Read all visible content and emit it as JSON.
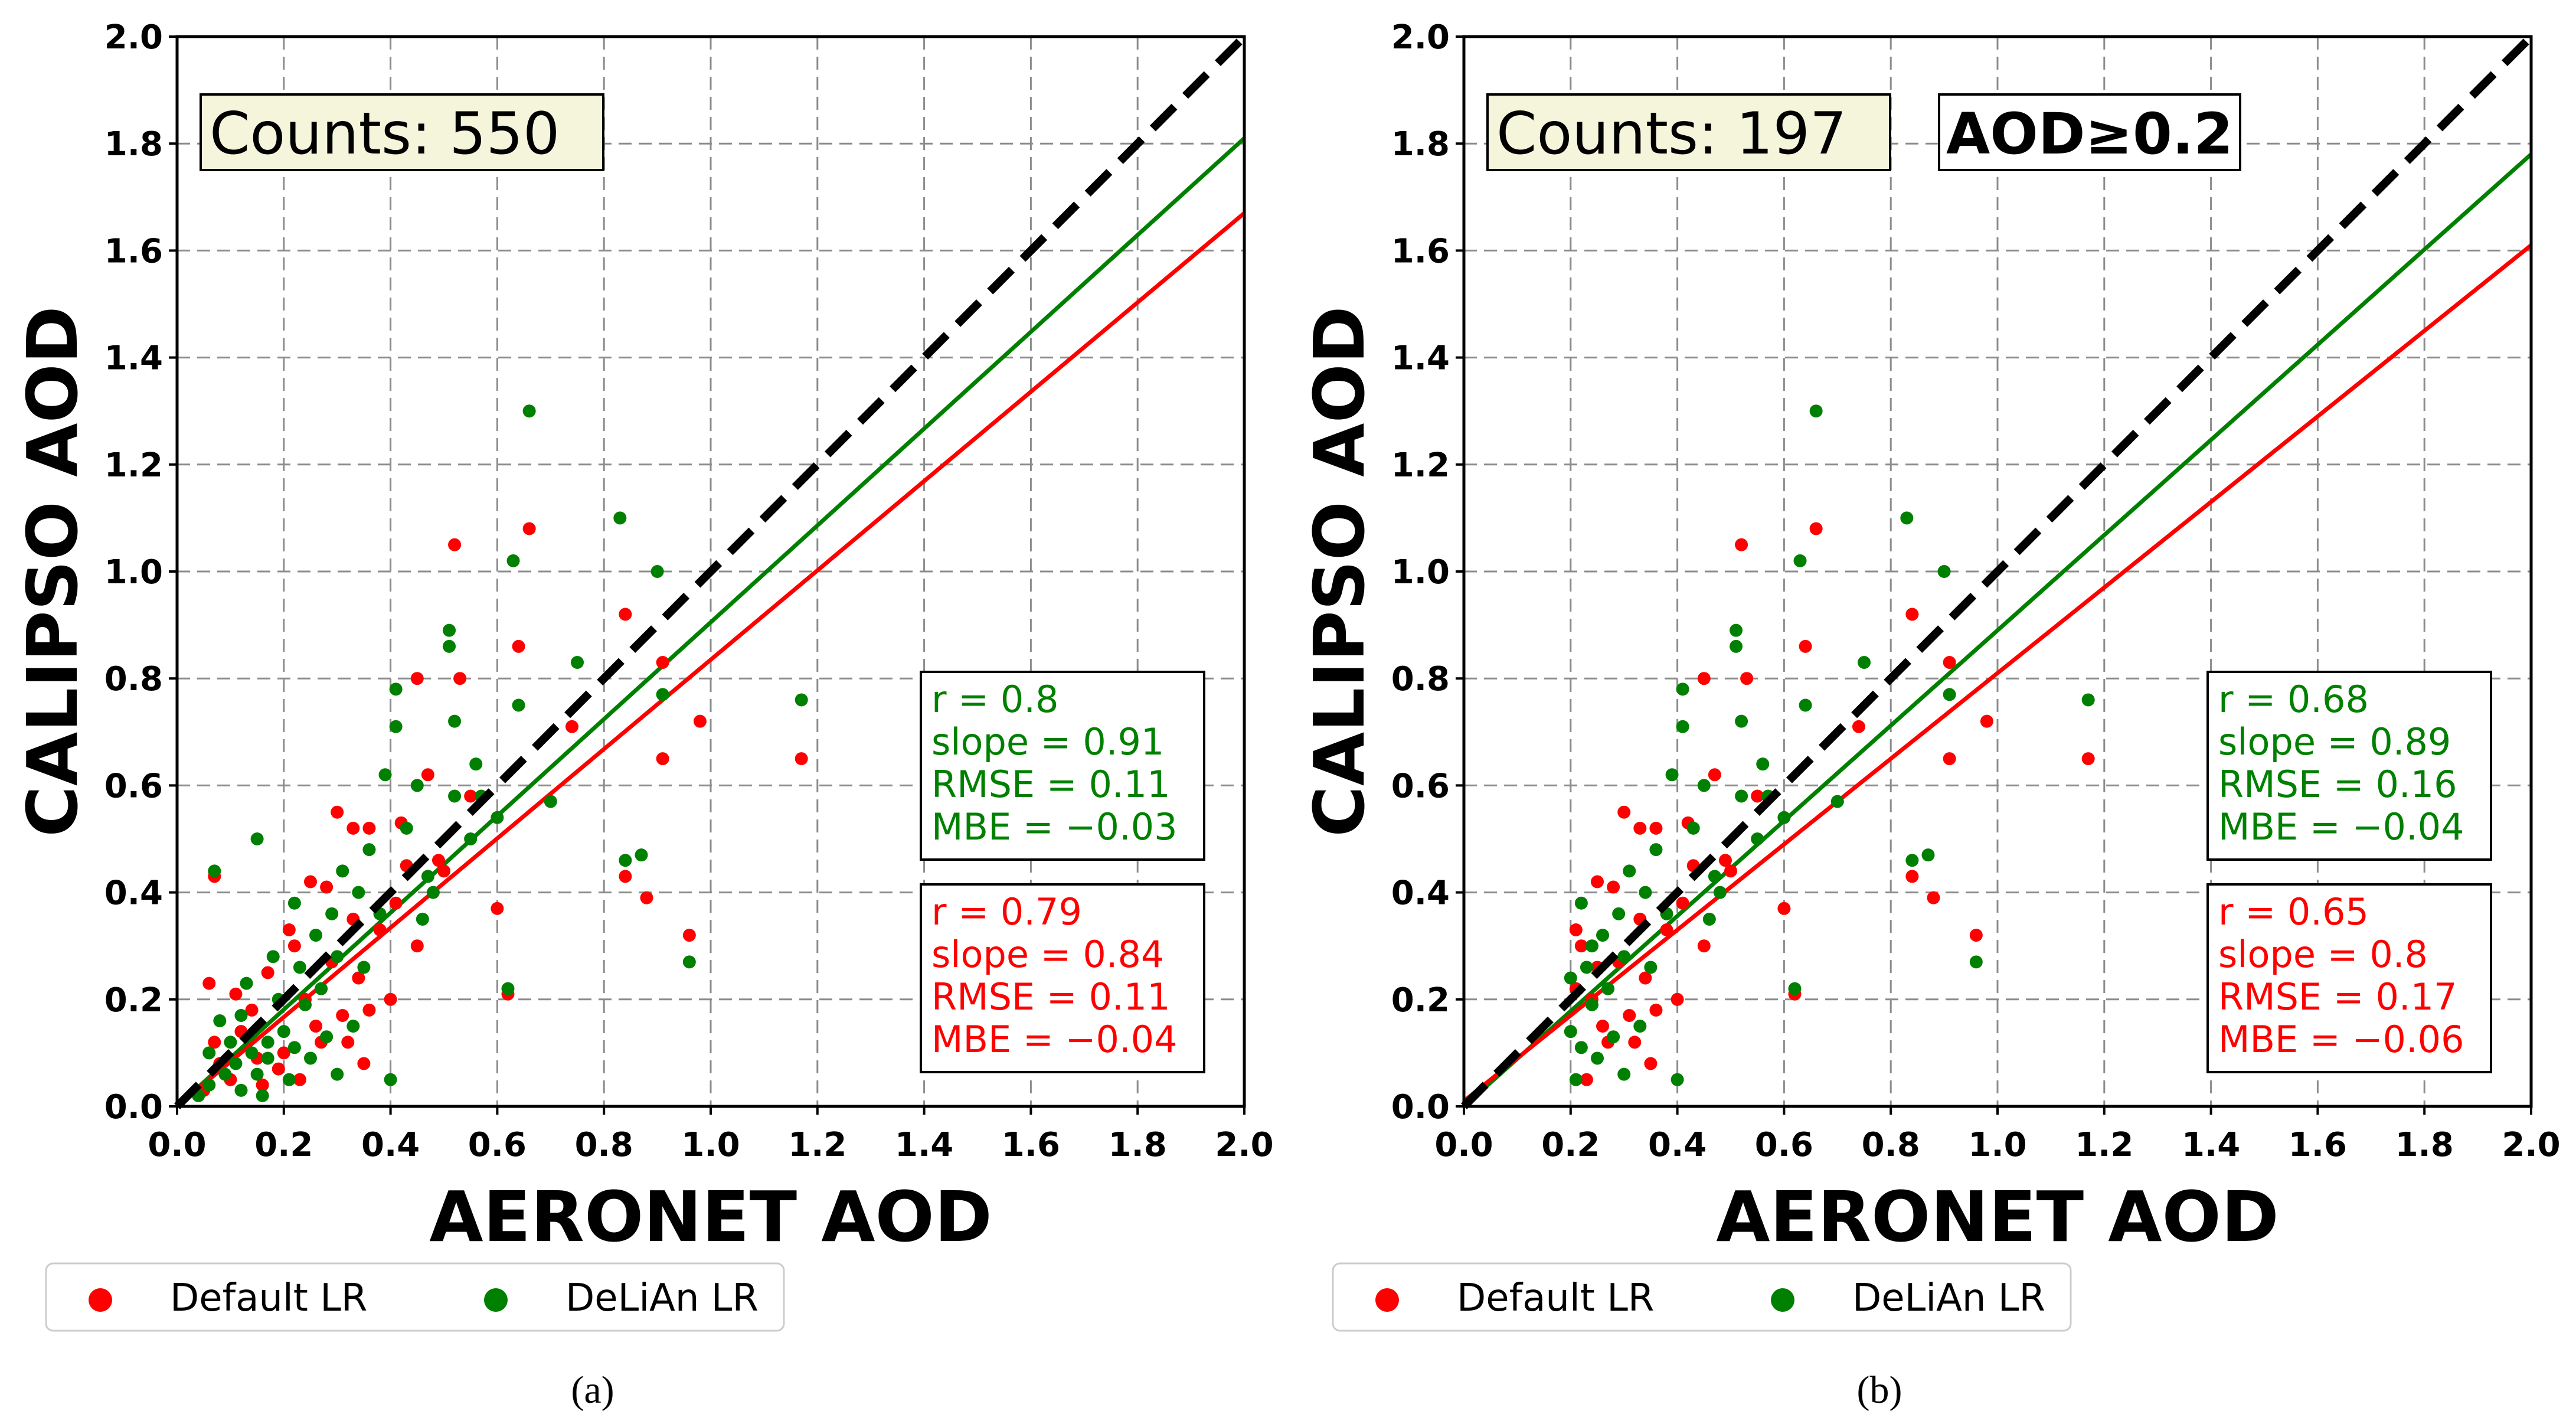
{
  "chart_data": [
    {
      "type": "scatter",
      "caption": "(a)",
      "xlabel": "AERONET AOD",
      "ylabel": "CALIPSO AOD",
      "xlim": [
        0,
        2.0
      ],
      "ylim": [
        0,
        2.0
      ],
      "xticks": [
        "0.0",
        "0.2",
        "0.4",
        "0.6",
        "0.8",
        "1.0",
        "1.2",
        "1.4",
        "1.6",
        "1.8",
        "2.0"
      ],
      "yticks": [
        "0.0",
        "0.2",
        "0.4",
        "0.6",
        "0.8",
        "1.0",
        "1.2",
        "1.4",
        "1.6",
        "1.8",
        "2.0"
      ],
      "grid": true,
      "counts_label": "Counts: 550",
      "filter_label": "",
      "one_to_one": {
        "x": [
          0,
          2.0
        ],
        "y": [
          0,
          2.0
        ],
        "color": "#000000"
      },
      "fit_lines": [
        {
          "series": "DeLiAn LR",
          "color": "#008000",
          "x": [
            0,
            2.0
          ],
          "y": [
            0.0,
            1.81
          ]
        },
        {
          "series": "Default LR",
          "color": "#ff0000",
          "x": [
            0,
            2.0
          ],
          "y": [
            0.0,
            1.67
          ]
        }
      ],
      "stats": [
        {
          "color": "#008000",
          "lines": [
            "r = 0.8",
            "slope = 0.91",
            "RMSE = 0.11",
            "MBE = −0.03"
          ]
        },
        {
          "color": "#ff0000",
          "lines": [
            "r = 0.79",
            "slope = 0.84",
            "RMSE = 0.11",
            "MBE = −0.04"
          ]
        }
      ],
      "series": [
        {
          "name": "Default LR",
          "color": "#ff0000",
          "points": [
            [
              0.52,
              1.05
            ],
            [
              0.66,
              1.08
            ],
            [
              0.64,
              0.86
            ],
            [
              0.53,
              0.8
            ],
            [
              0.45,
              0.8
            ],
            [
              0.84,
              0.92
            ],
            [
              0.91,
              0.83
            ],
            [
              0.98,
              0.72
            ],
            [
              1.17,
              0.65
            ],
            [
              0.91,
              0.65
            ],
            [
              0.74,
              0.71
            ],
            [
              0.55,
              0.58
            ],
            [
              0.47,
              0.62
            ],
            [
              0.42,
              0.53
            ],
            [
              0.36,
              0.52
            ],
            [
              0.33,
              0.52
            ],
            [
              0.3,
              0.55
            ],
            [
              0.43,
              0.45
            ],
            [
              0.49,
              0.46
            ],
            [
              0.84,
              0.43
            ],
            [
              0.88,
              0.39
            ],
            [
              0.6,
              0.37
            ],
            [
              0.96,
              0.32
            ],
            [
              0.62,
              0.21
            ],
            [
              0.07,
              0.43
            ],
            [
              0.25,
              0.42
            ],
            [
              0.33,
              0.35
            ],
            [
              0.45,
              0.3
            ],
            [
              0.34,
              0.24
            ],
            [
              0.4,
              0.2
            ],
            [
              0.36,
              0.18
            ],
            [
              0.29,
              0.27
            ],
            [
              0.31,
              0.17
            ],
            [
              0.27,
              0.12
            ],
            [
              0.32,
              0.12
            ],
            [
              0.2,
              0.1
            ],
            [
              0.15,
              0.09
            ],
            [
              0.1,
              0.05
            ],
            [
              0.05,
              0.03
            ],
            [
              0.06,
              0.23
            ],
            [
              0.07,
              0.12
            ],
            [
              0.12,
              0.14
            ],
            [
              0.17,
              0.25
            ],
            [
              0.22,
              0.3
            ],
            [
              0.24,
              0.2
            ],
            [
              0.19,
              0.07
            ],
            [
              0.23,
              0.05
            ],
            [
              0.35,
              0.08
            ],
            [
              0.14,
              0.18
            ],
            [
              0.08,
              0.08
            ],
            [
              0.26,
              0.15
            ],
            [
              0.38,
              0.33
            ],
            [
              0.41,
              0.38
            ],
            [
              0.5,
              0.44
            ],
            [
              0.28,
              0.41
            ],
            [
              0.16,
              0.04
            ],
            [
              0.11,
              0.21
            ],
            [
              0.21,
              0.33
            ]
          ]
        },
        {
          "name": "DeLiAn LR",
          "color": "#008000",
          "points": [
            [
              0.66,
              1.3
            ],
            [
              0.83,
              1.1
            ],
            [
              0.63,
              1.02
            ],
            [
              0.9,
              1.0
            ],
            [
              0.51,
              0.89
            ],
            [
              0.51,
              0.86
            ],
            [
              0.75,
              0.83
            ],
            [
              0.91,
              0.77
            ],
            [
              1.17,
              0.76
            ],
            [
              0.64,
              0.75
            ],
            [
              0.41,
              0.78
            ],
            [
              0.41,
              0.71
            ],
            [
              0.52,
              0.72
            ],
            [
              0.39,
              0.62
            ],
            [
              0.45,
              0.6
            ],
            [
              0.52,
              0.58
            ],
            [
              0.57,
              0.58
            ],
            [
              0.6,
              0.54
            ],
            [
              0.7,
              0.57
            ],
            [
              0.56,
              0.64
            ],
            [
              0.84,
              0.46
            ],
            [
              0.87,
              0.47
            ],
            [
              0.47,
              0.43
            ],
            [
              0.96,
              0.27
            ],
            [
              0.62,
              0.22
            ],
            [
              0.07,
              0.44
            ],
            [
              0.15,
              0.5
            ],
            [
              0.22,
              0.38
            ],
            [
              0.26,
              0.32
            ],
            [
              0.3,
              0.28
            ],
            [
              0.35,
              0.26
            ],
            [
              0.4,
              0.05
            ],
            [
              0.33,
              0.15
            ],
            [
              0.28,
              0.13
            ],
            [
              0.24,
              0.19
            ],
            [
              0.2,
              0.14
            ],
            [
              0.17,
              0.12
            ],
            [
              0.14,
              0.1
            ],
            [
              0.11,
              0.08
            ],
            [
              0.09,
              0.06
            ],
            [
              0.06,
              0.04
            ],
            [
              0.04,
              0.02
            ],
            [
              0.13,
              0.23
            ],
            [
              0.18,
              0.28
            ],
            [
              0.23,
              0.26
            ],
            [
              0.27,
              0.22
            ],
            [
              0.21,
              0.05
            ],
            [
              0.16,
              0.02
            ],
            [
              0.12,
              0.03
            ],
            [
              0.31,
              0.44
            ],
            [
              0.36,
              0.48
            ],
            [
              0.43,
              0.52
            ],
            [
              0.48,
              0.4
            ],
            [
              0.55,
              0.5
            ],
            [
              0.08,
              0.16
            ],
            [
              0.1,
              0.12
            ],
            [
              0.19,
              0.2
            ],
            [
              0.25,
              0.09
            ],
            [
              0.29,
              0.36
            ],
            [
              0.34,
              0.4
            ],
            [
              0.38,
              0.36
            ],
            [
              0.15,
              0.06
            ],
            [
              0.22,
              0.11
            ],
            [
              0.3,
              0.06
            ],
            [
              0.46,
              0.35
            ],
            [
              0.06,
              0.1
            ],
            [
              0.12,
              0.17
            ],
            [
              0.17,
              0.09
            ]
          ]
        }
      ],
      "legend": {
        "placement": "bottom-left",
        "items": [
          {
            "label": "Default LR",
            "color": "#ff0000"
          },
          {
            "label": "DeLiAn LR",
            "color": "#008000"
          }
        ]
      }
    },
    {
      "type": "scatter",
      "caption": "(b)",
      "xlabel": "AERONET AOD",
      "ylabel": "CALIPSO AOD",
      "xlim": [
        0,
        2.0
      ],
      "ylim": [
        0,
        2.0
      ],
      "xticks": [
        "0.0",
        "0.2",
        "0.4",
        "0.6",
        "0.8",
        "1.0",
        "1.2",
        "1.4",
        "1.6",
        "1.8",
        "2.0"
      ],
      "yticks": [
        "0.0",
        "0.2",
        "0.4",
        "0.6",
        "0.8",
        "1.0",
        "1.2",
        "1.4",
        "1.6",
        "1.8",
        "2.0"
      ],
      "grid": true,
      "counts_label": "Counts: 197",
      "filter_label": "AOD≥0.2",
      "one_to_one": {
        "x": [
          0,
          2.0
        ],
        "y": [
          0,
          2.0
        ],
        "color": "#000000"
      },
      "fit_lines": [
        {
          "series": "DeLiAn LR",
          "color": "#008000",
          "x": [
            0,
            2.0
          ],
          "y": [
            0.0,
            1.78
          ]
        },
        {
          "series": "Default LR",
          "color": "#ff0000",
          "x": [
            0,
            2.0
          ],
          "y": [
            0.01,
            1.61
          ]
        }
      ],
      "stats": [
        {
          "color": "#008000",
          "lines": [
            "r = 0.68",
            "slope = 0.89",
            "RMSE = 0.16",
            "MBE = −0.04"
          ]
        },
        {
          "color": "#ff0000",
          "lines": [
            "r = 0.65",
            "slope = 0.8",
            "RMSE = 0.17",
            "MBE = −0.06"
          ]
        }
      ],
      "series": [
        {
          "name": "Default LR",
          "color": "#ff0000",
          "points": [
            [
              0.52,
              1.05
            ],
            [
              0.66,
              1.08
            ],
            [
              0.64,
              0.86
            ],
            [
              0.53,
              0.8
            ],
            [
              0.45,
              0.8
            ],
            [
              0.84,
              0.92
            ],
            [
              0.91,
              0.83
            ],
            [
              0.98,
              0.72
            ],
            [
              1.17,
              0.65
            ],
            [
              0.91,
              0.65
            ],
            [
              0.74,
              0.71
            ],
            [
              0.55,
              0.58
            ],
            [
              0.47,
              0.62
            ],
            [
              0.42,
              0.53
            ],
            [
              0.36,
              0.52
            ],
            [
              0.33,
              0.52
            ],
            [
              0.3,
              0.55
            ],
            [
              0.43,
              0.45
            ],
            [
              0.49,
              0.46
            ],
            [
              0.84,
              0.43
            ],
            [
              0.88,
              0.39
            ],
            [
              0.6,
              0.37
            ],
            [
              0.96,
              0.32
            ],
            [
              0.62,
              0.21
            ],
            [
              0.25,
              0.42
            ],
            [
              0.33,
              0.35
            ],
            [
              0.45,
              0.3
            ],
            [
              0.34,
              0.24
            ],
            [
              0.4,
              0.2
            ],
            [
              0.36,
              0.18
            ],
            [
              0.29,
              0.27
            ],
            [
              0.31,
              0.17
            ],
            [
              0.27,
              0.12
            ],
            [
              0.32,
              0.12
            ],
            [
              0.22,
              0.3
            ],
            [
              0.24,
              0.2
            ],
            [
              0.23,
              0.05
            ],
            [
              0.35,
              0.08
            ],
            [
              0.26,
              0.15
            ],
            [
              0.38,
              0.33
            ],
            [
              0.41,
              0.38
            ],
            [
              0.5,
              0.44
            ],
            [
              0.28,
              0.41
            ],
            [
              0.21,
              0.33
            ],
            [
              0.21,
              0.22
            ],
            [
              0.25,
              0.26
            ]
          ]
        },
        {
          "name": "DeLiAn LR",
          "color": "#008000",
          "points": [
            [
              0.66,
              1.3
            ],
            [
              0.83,
              1.1
            ],
            [
              0.63,
              1.02
            ],
            [
              0.9,
              1.0
            ],
            [
              0.51,
              0.89
            ],
            [
              0.51,
              0.86
            ],
            [
              0.75,
              0.83
            ],
            [
              0.91,
              0.77
            ],
            [
              1.17,
              0.76
            ],
            [
              0.64,
              0.75
            ],
            [
              0.41,
              0.78
            ],
            [
              0.41,
              0.71
            ],
            [
              0.52,
              0.72
            ],
            [
              0.39,
              0.62
            ],
            [
              0.45,
              0.6
            ],
            [
              0.52,
              0.58
            ],
            [
              0.57,
              0.58
            ],
            [
              0.6,
              0.54
            ],
            [
              0.7,
              0.57
            ],
            [
              0.56,
              0.64
            ],
            [
              0.84,
              0.46
            ],
            [
              0.87,
              0.47
            ],
            [
              0.47,
              0.43
            ],
            [
              0.96,
              0.27
            ],
            [
              0.62,
              0.22
            ],
            [
              0.22,
              0.38
            ],
            [
              0.26,
              0.32
            ],
            [
              0.3,
              0.28
            ],
            [
              0.35,
              0.26
            ],
            [
              0.4,
              0.05
            ],
            [
              0.33,
              0.15
            ],
            [
              0.28,
              0.13
            ],
            [
              0.24,
              0.19
            ],
            [
              0.2,
              0.14
            ],
            [
              0.23,
              0.26
            ],
            [
              0.27,
              0.22
            ],
            [
              0.21,
              0.05
            ],
            [
              0.31,
              0.44
            ],
            [
              0.36,
              0.48
            ],
            [
              0.43,
              0.52
            ],
            [
              0.48,
              0.4
            ],
            [
              0.55,
              0.5
            ],
            [
              0.25,
              0.09
            ],
            [
              0.29,
              0.36
            ],
            [
              0.34,
              0.4
            ],
            [
              0.38,
              0.36
            ],
            [
              0.22,
              0.11
            ],
            [
              0.3,
              0.06
            ],
            [
              0.46,
              0.35
            ],
            [
              0.2,
              0.24
            ],
            [
              0.24,
              0.3
            ]
          ]
        }
      ],
      "legend": {
        "placement": "bottom-left",
        "items": [
          {
            "label": "Default LR",
            "color": "#ff0000"
          },
          {
            "label": "DeLiAn LR",
            "color": "#008000"
          }
        ]
      }
    }
  ]
}
